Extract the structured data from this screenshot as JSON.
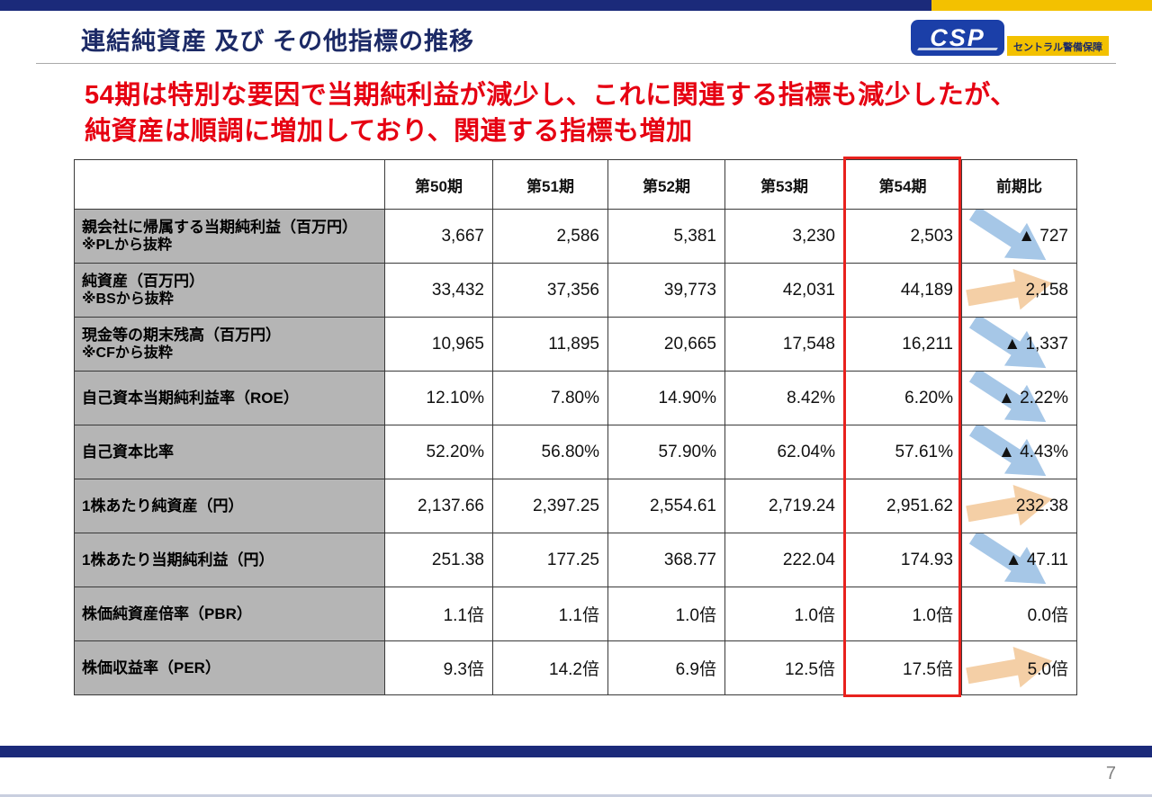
{
  "page": {
    "title": "連結純資産 及び その他指標の推移",
    "headline_line1": "54期は特別な要因で当期純利益が減少し、これに関連する指標も減少したが、",
    "headline_line2": "純資産は順調に増加しており、関連する指標も増加",
    "page_number": "7"
  },
  "logo": {
    "csp": "CSP",
    "company": "セントラル警備保障"
  },
  "colors": {
    "navy": "#1b2a7a",
    "yellow": "#f3c100",
    "red": "#e60012",
    "label_gray": "#b5b5b5",
    "arrow_blue": "#a6c7e7",
    "arrow_orange": "#f4cfa6",
    "border": "#3a3a3a"
  },
  "chart_data": {
    "type": "table",
    "title": "連結純資産 及び その他指標の推移",
    "highlighted_column": "第54期",
    "columns": [
      "",
      "第50期",
      "第51期",
      "第52期",
      "第53期",
      "第54期",
      "前期比"
    ],
    "rows": [
      {
        "label": "親会社に帰属する当期純利益（百万円）",
        "note": "※PLから抜粋",
        "values": [
          "3,667",
          "2,586",
          "5,381",
          "3,230",
          "2,503"
        ],
        "change": "▲ 727",
        "trend": "down"
      },
      {
        "label": "純資産（百万円）",
        "note": "※BSから抜粋",
        "values": [
          "33,432",
          "37,356",
          "39,773",
          "42,031",
          "44,189"
        ],
        "change": "2,158",
        "trend": "up"
      },
      {
        "label": "現金等の期末残高（百万円）",
        "note": "※CFから抜粋",
        "values": [
          "10,965",
          "11,895",
          "20,665",
          "17,548",
          "16,211"
        ],
        "change": "▲ 1,337",
        "trend": "down"
      },
      {
        "label": "自己資本当期純利益率（ROE）",
        "note": "",
        "values": [
          "12.10%",
          "7.80%",
          "14.90%",
          "8.42%",
          "6.20%"
        ],
        "change": "▲ 2.22%",
        "trend": "down"
      },
      {
        "label": "自己資本比率",
        "note": "",
        "values": [
          "52.20%",
          "56.80%",
          "57.90%",
          "62.04%",
          "57.61%"
        ],
        "change": "▲ 4.43%",
        "trend": "down"
      },
      {
        "label": "1株あたり純資産（円）",
        "note": "",
        "values": [
          "2,137.66",
          "2,397.25",
          "2,554.61",
          "2,719.24",
          "2,951.62"
        ],
        "change": "232.38",
        "trend": "up"
      },
      {
        "label": "1株あたり当期純利益（円）",
        "note": "",
        "values": [
          "251.38",
          "177.25",
          "368.77",
          "222.04",
          "174.93"
        ],
        "change": "▲ 47.11",
        "trend": "down"
      },
      {
        "label": "株価純資産倍率（PBR）",
        "note": "",
        "values": [
          "1.1倍",
          "1.1倍",
          "1.0倍",
          "1.0倍",
          "1.0倍"
        ],
        "change": "0.0倍",
        "trend": "flat"
      },
      {
        "label": "株価収益率（PER）",
        "note": "",
        "values": [
          "9.3倍",
          "14.2倍",
          "6.9倍",
          "12.5倍",
          "17.5倍"
        ],
        "change": "5.0倍",
        "trend": "up"
      }
    ]
  }
}
